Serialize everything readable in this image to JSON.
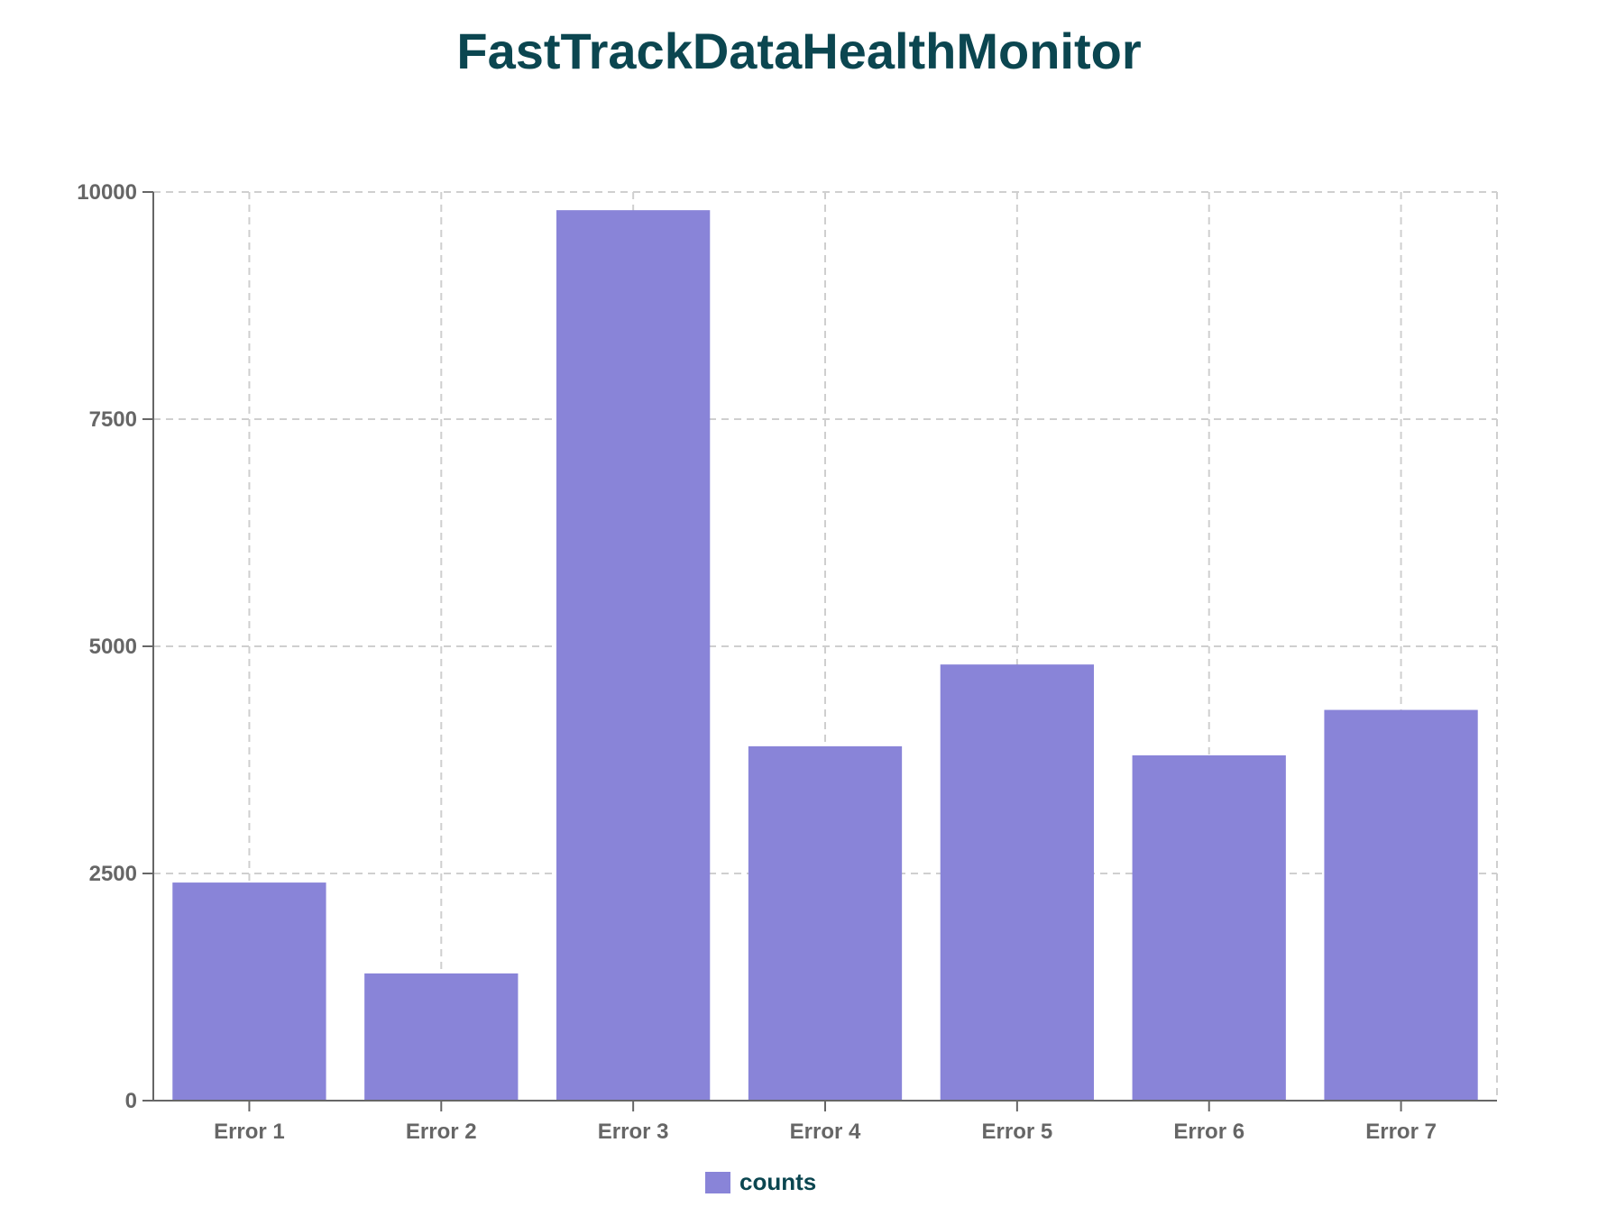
{
  "chart_data": {
    "type": "bar",
    "title": "FastTrackDataHealthMonitor",
    "categories": [
      "Error 1",
      "Error 2",
      "Error 3",
      "Error 4",
      "Error 5",
      "Error 6",
      "Error 7"
    ],
    "series": [
      {
        "name": "counts",
        "values": [
          2400,
          1400,
          9800,
          3900,
          4800,
          3800,
          4300
        ],
        "color": "#8984d8"
      }
    ],
    "yticks": [
      0,
      2500,
      5000,
      7500,
      10000
    ],
    "ylim": [
      0,
      10000
    ],
    "xlabel": "",
    "ylabel": "",
    "grid": true,
    "legend_position": "bottom-center"
  },
  "colors": {
    "title": "#0b4650",
    "bar": "#8984d8",
    "axis": "#666666",
    "grid": "#cfcfcf",
    "tick_text": "#666666",
    "legend_text": "#0b4650"
  }
}
